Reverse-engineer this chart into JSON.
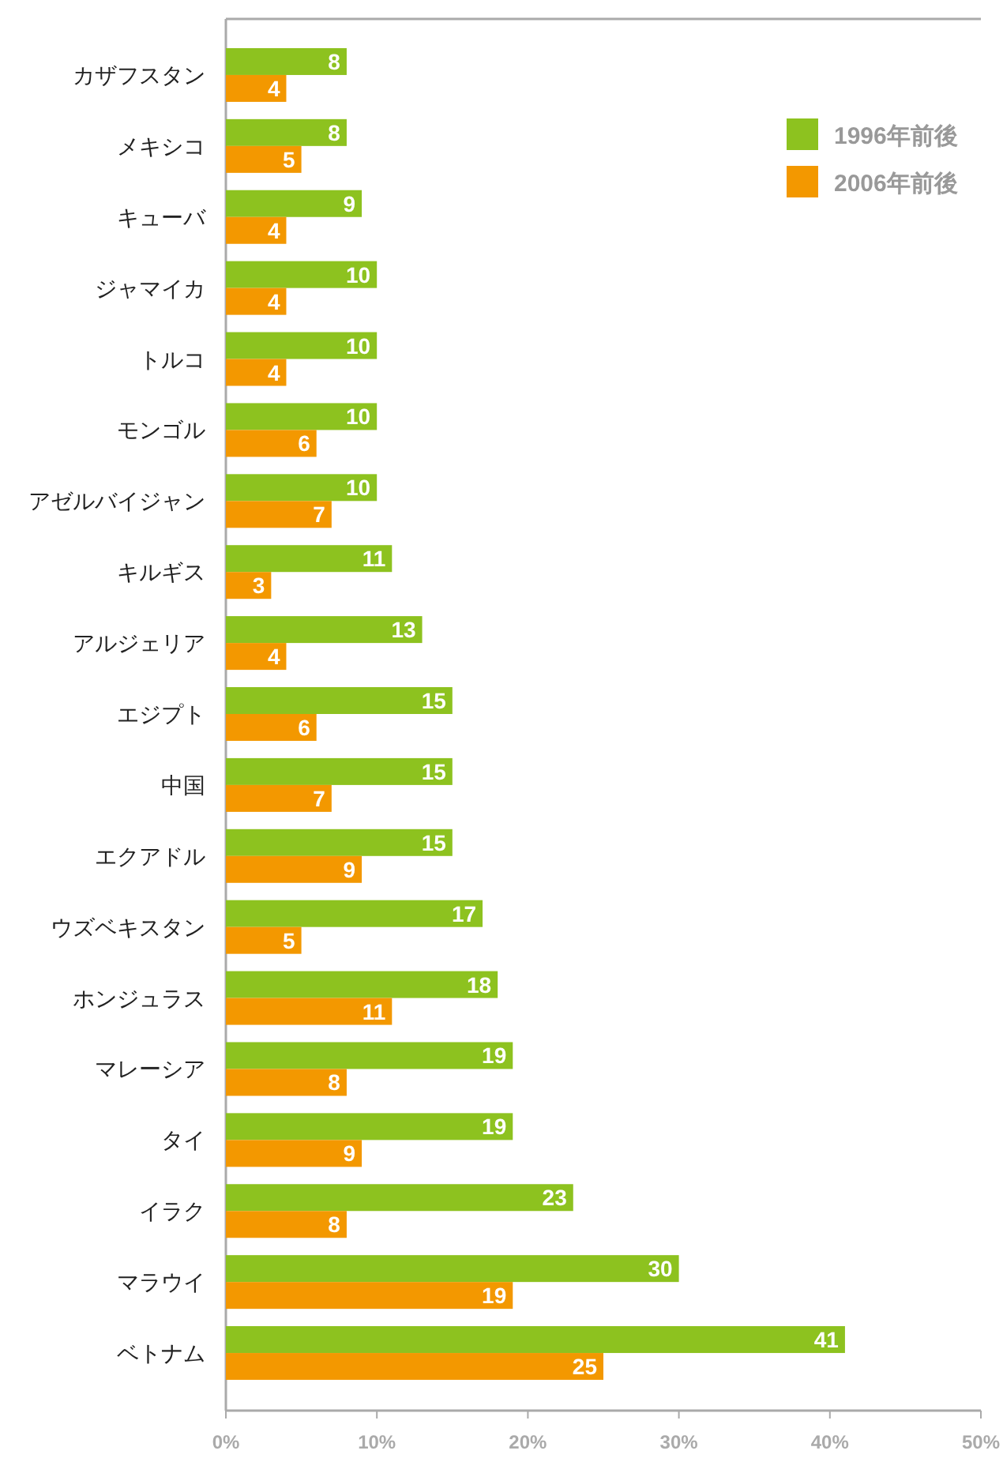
{
  "chart_data": {
    "type": "bar",
    "orientation": "horizontal",
    "categories": [
      "カザフスタン",
      "メキシコ",
      "キューバ",
      "ジャマイカ",
      "トルコ",
      "モンゴル",
      "アゼルバイジャン",
      "キルギス",
      "アルジェリア",
      "エジプト",
      "中国",
      "エクアドル",
      "ウズベキスタン",
      "ホンジュラス",
      "マレーシア",
      "タイ",
      "イラク",
      "マラウイ",
      "ベトナム"
    ],
    "series": [
      {
        "name": "1996年前後",
        "color": "#8dc21f",
        "values": [
          8,
          8,
          9,
          10,
          10,
          10,
          10,
          11,
          13,
          15,
          15,
          15,
          17,
          18,
          19,
          19,
          23,
          30,
          41
        ]
      },
      {
        "name": "2006年前後",
        "color": "#f39800",
        "values": [
          4,
          5,
          4,
          4,
          4,
          6,
          7,
          3,
          4,
          6,
          7,
          9,
          5,
          11,
          8,
          9,
          8,
          19,
          25
        ]
      }
    ],
    "xlim": [
      0,
      50
    ],
    "xticks": [
      {
        "value": 0,
        "label": "0%"
      },
      {
        "value": 10,
        "label": "10%"
      },
      {
        "value": 20,
        "label": "20%"
      },
      {
        "value": 30,
        "label": "30%"
      },
      {
        "value": 40,
        "label": "40%"
      },
      {
        "value": 50,
        "label": "50%"
      }
    ],
    "data_labels": true,
    "legend": "top right",
    "grid": false
  }
}
